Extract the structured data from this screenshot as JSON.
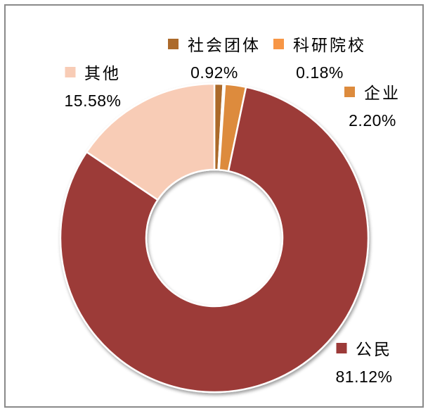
{
  "window": {
    "background": "#ffffff",
    "frame_border_color": "#8a8a8a"
  },
  "chart_data": {
    "type": "pie",
    "subtype": "donut",
    "title": "",
    "start_angle_deg": -90,
    "direction": "clockwise",
    "categories": [
      "社会团体",
      "科研院校",
      "企业",
      "公民",
      "其他"
    ],
    "values": [
      0.92,
      0.18,
      2.2,
      81.12,
      15.58
    ],
    "percent_labels": [
      "0.92%",
      "0.18%",
      "2.20%",
      "81.12%",
      "15.58%"
    ],
    "colors": [
      "#ac6a2b",
      "#f79646",
      "#dd8b3d",
      "#9c3a38",
      "#f8ccb6"
    ],
    "slice_border_color": "#ffffff",
    "legend_position": "labels-around-slices",
    "grid": false
  }
}
